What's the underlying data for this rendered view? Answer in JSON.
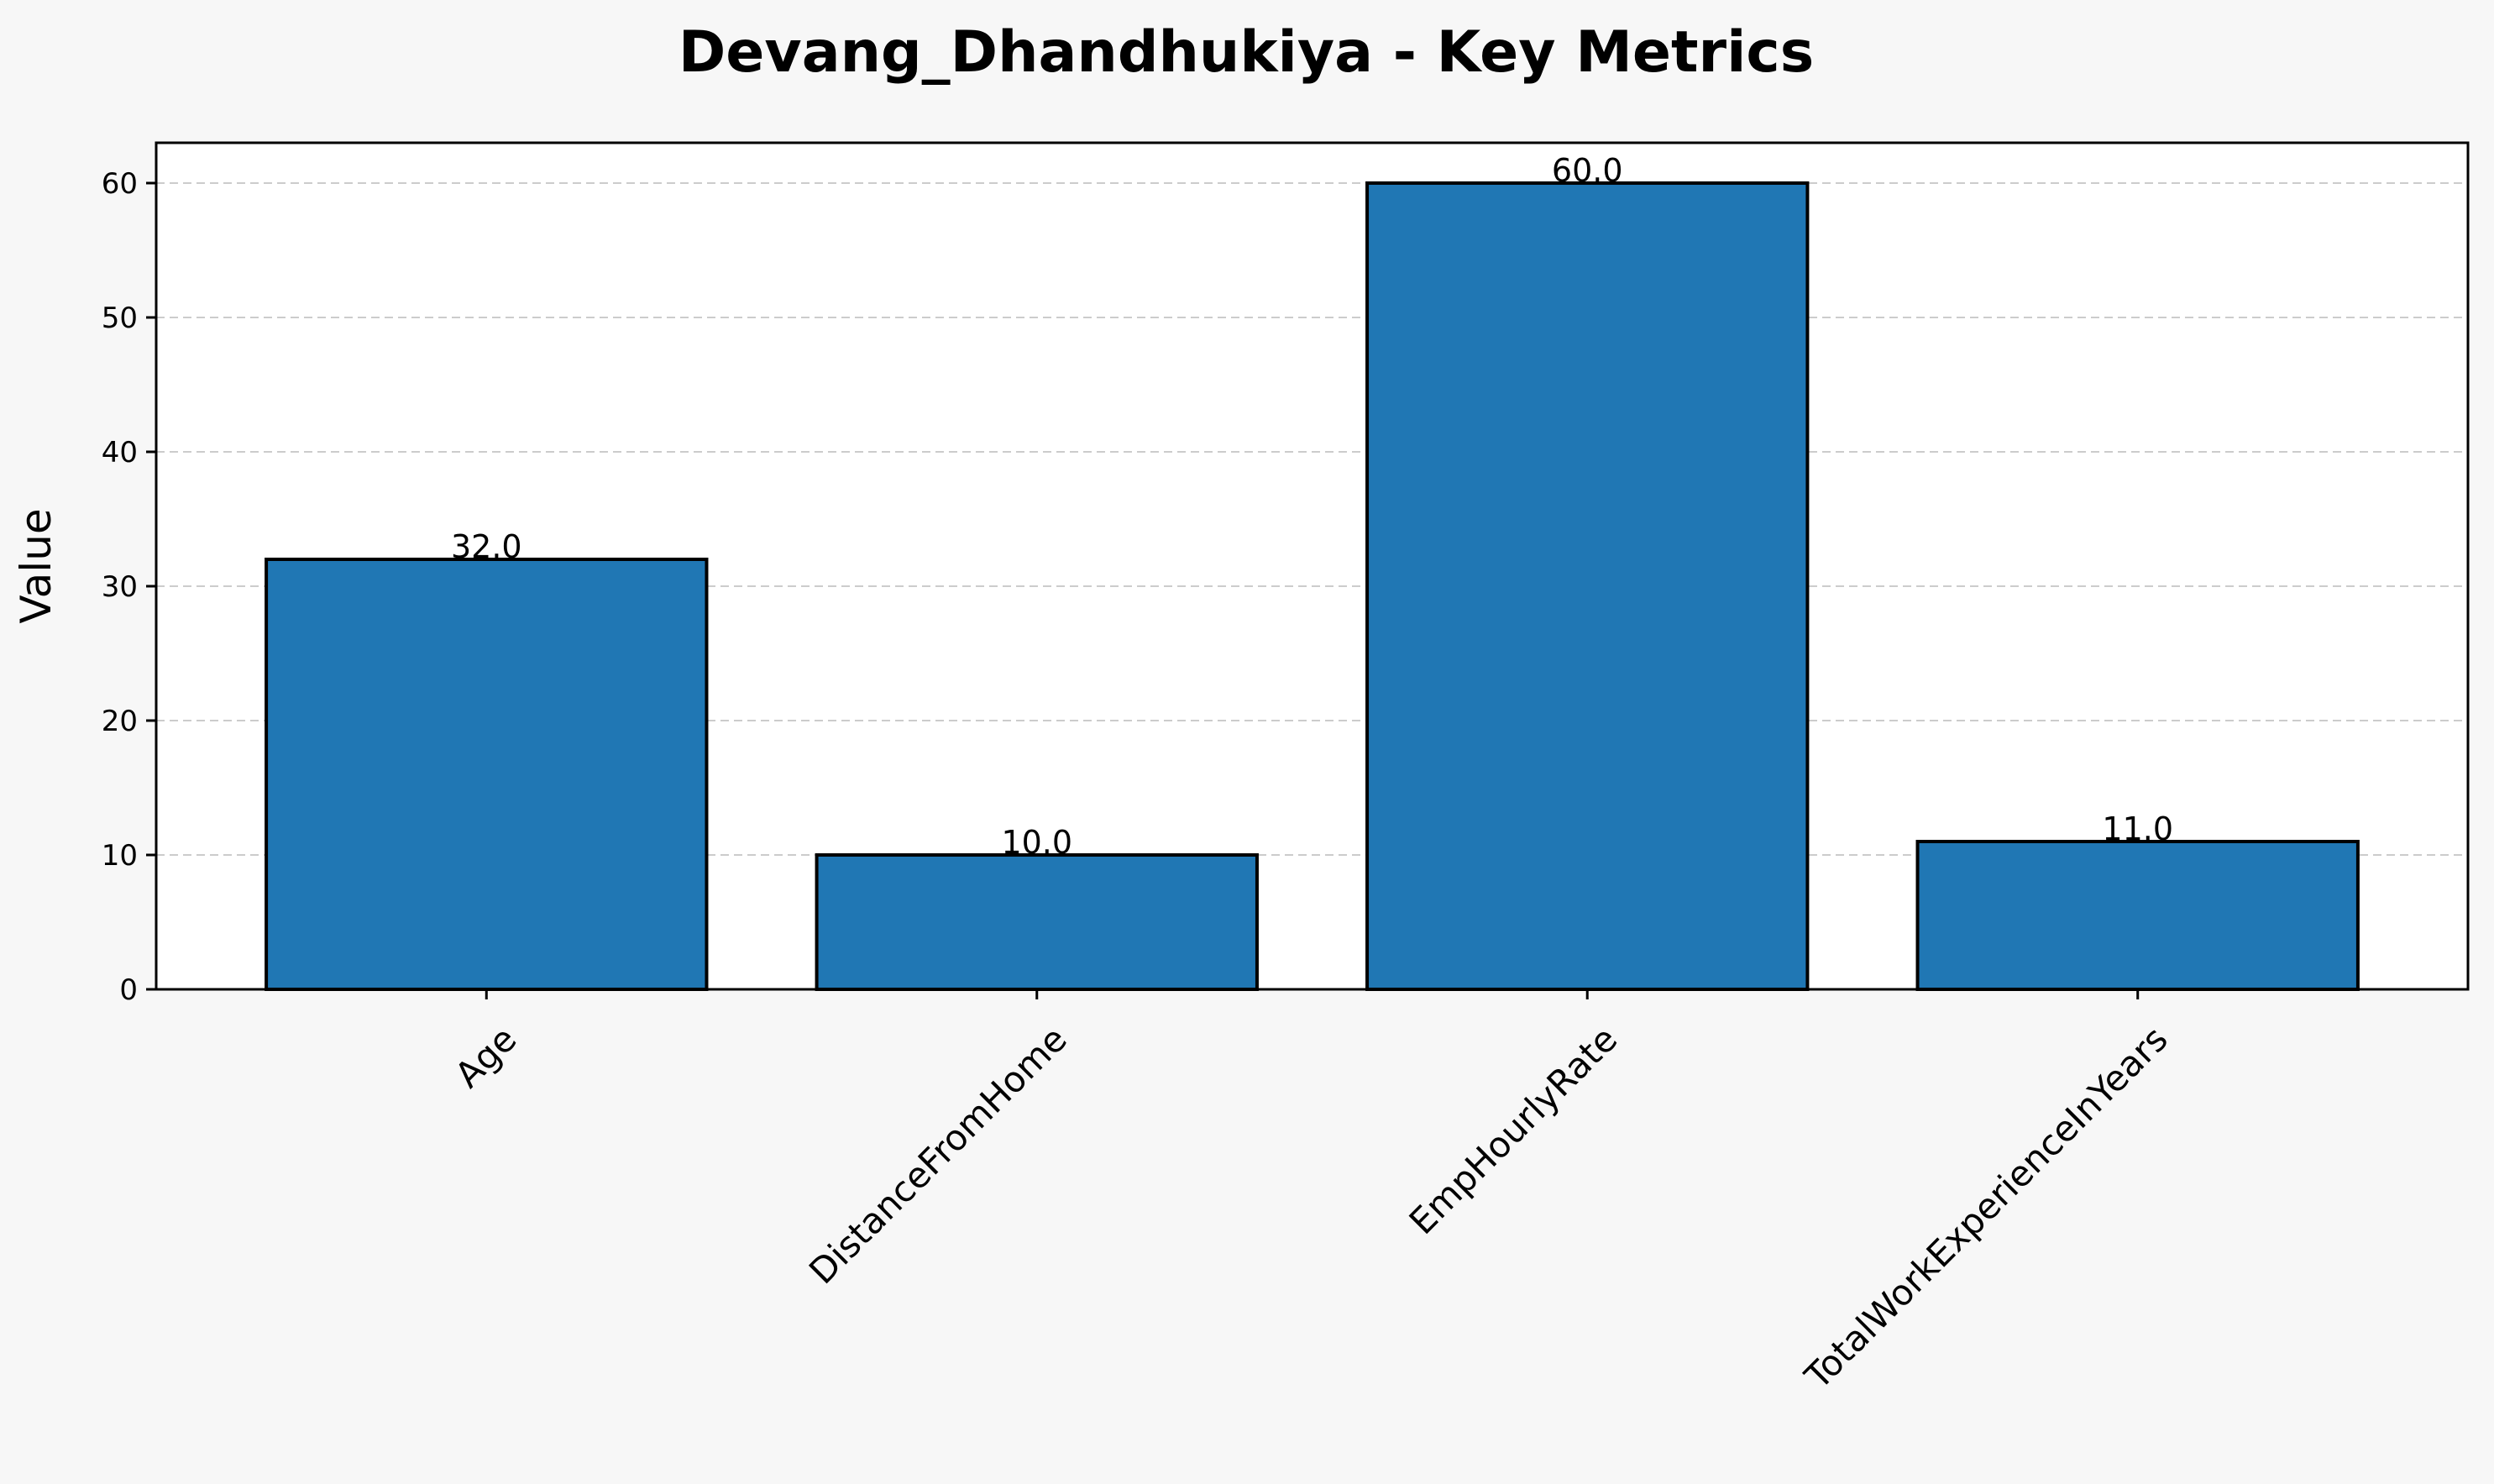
{
  "chart_data": {
    "type": "bar",
    "title": "Devang_Dhandhukiya - Key Metrics",
    "xlabel": "",
    "ylabel": "Value",
    "categories": [
      "Age",
      "DistanceFromHome",
      "EmpHourlyRate",
      "TotalWorkExperienceInYears"
    ],
    "values": [
      32.0,
      10.0,
      60.0,
      11.0
    ],
    "value_labels": [
      "32.0",
      "10.0",
      "60.0",
      "11.0"
    ],
    "ylim": [
      0,
      63
    ],
    "yticks": [
      0,
      10,
      20,
      30,
      40,
      50,
      60
    ],
    "ytick_labels": [
      "0",
      "10",
      "20",
      "30",
      "40",
      "50",
      "60"
    ],
    "grid": "y-axis dashed",
    "legend": "none",
    "colors": {
      "bar_fill": "#2077b4",
      "bar_edge": "#000000",
      "grid": "#cccccc",
      "plot_background": "#ffffff",
      "figure_background": "#f7f7f7"
    }
  }
}
